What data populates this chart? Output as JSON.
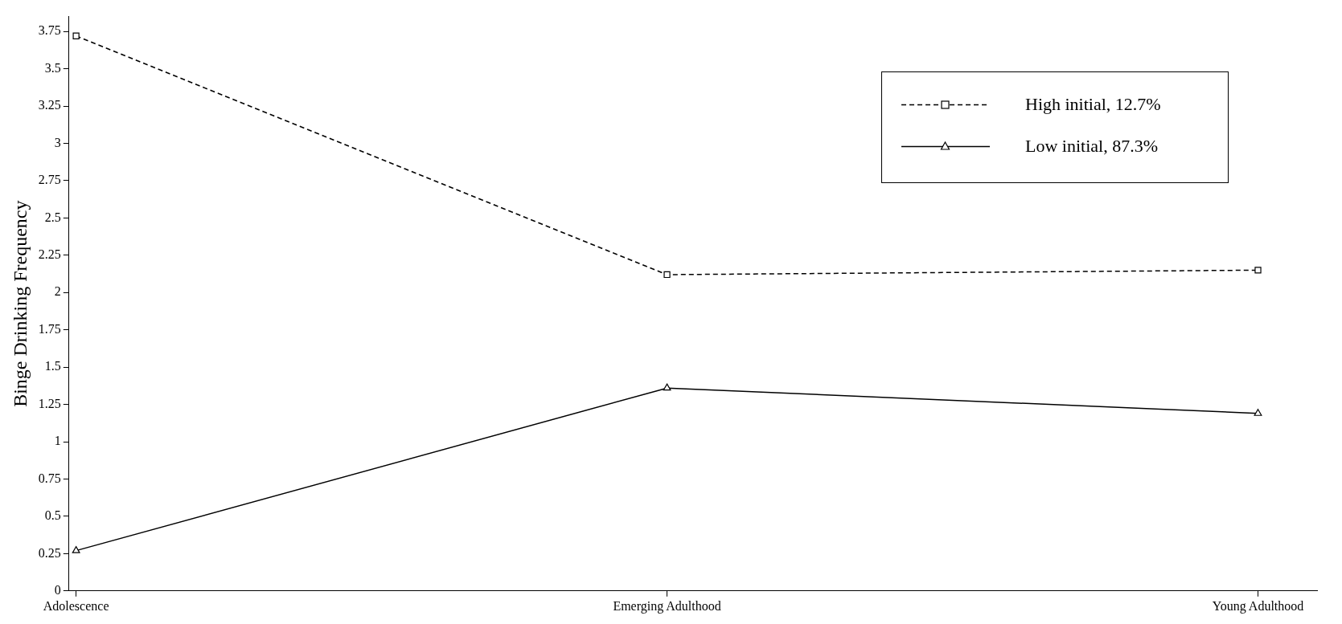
{
  "chart_data": {
    "type": "line",
    "ylabel": "Binge Drinking Frequency",
    "categories": [
      "Adolescence",
      "Emerging Adulthood",
      "Young Adulthood"
    ],
    "series": [
      {
        "name": "High initial, 12.7%",
        "color": "#000000",
        "values": [
          3.72,
          2.12,
          2.15
        ],
        "marker": "square",
        "line_style": "dashed"
      },
      {
        "name": "Low initial, 87.3%",
        "color": "#000000",
        "values": [
          0.27,
          1.36,
          1.19
        ],
        "marker": "triangle",
        "line_style": "solid"
      }
    ],
    "ylim": [
      0,
      3.85
    ],
    "yticks": [
      0,
      0.25,
      0.5,
      0.75,
      1,
      1.25,
      1.5,
      1.75,
      2,
      2.25,
      2.5,
      2.75,
      3,
      3.25,
      3.5,
      3.75
    ],
    "grid": false,
    "legend": "top right"
  }
}
